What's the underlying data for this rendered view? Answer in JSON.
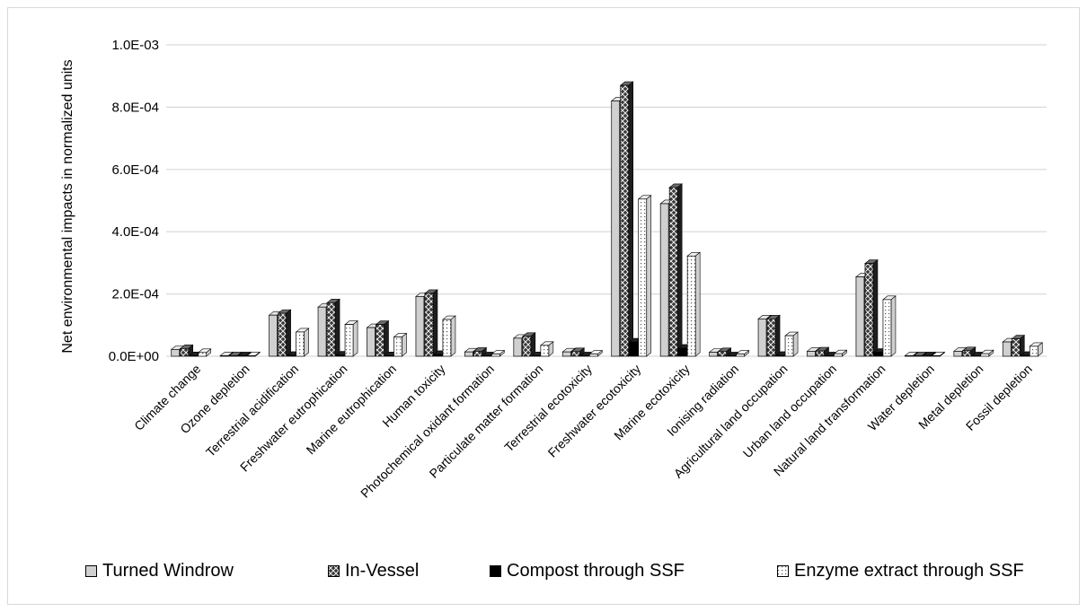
{
  "chart_data": {
    "type": "bar",
    "title": "",
    "ylabel": "Net environmental impacts in normalized units",
    "xlabel": "",
    "ylim": [
      0,
      0.001
    ],
    "yticks": [
      "0.0E+00",
      "2.0E-04",
      "4.0E-04",
      "6.0E-04",
      "8.0E-04",
      "1.0E-03"
    ],
    "ytick_values": [
      0,
      0.0002,
      0.0004,
      0.0006,
      0.0008,
      0.001
    ],
    "grid": "horizontal",
    "legend_position": "bottom",
    "categories": [
      "Climate change",
      "Ozone depletion",
      "Terrestrial acidification",
      "Freshwater eutrophication",
      "Marine eutrophication",
      "Human toxicity",
      "Photochemical oxidant formation",
      "Particulate matter formation",
      "Terrestrial ecotoxicity",
      "Freshwater ecotoxicity",
      "Marine ecotoxicity",
      "Ionising radiation",
      "Agricultural land occupation",
      "Urban land occupation",
      "Natural land transformation",
      "Water depletion",
      "Metal depletion",
      "Fossil depletion"
    ],
    "series": [
      {
        "name": "Turned Windrow",
        "pattern": "light-gray",
        "values": [
          2.2e-05,
          1e-06,
          0.000132,
          0.000158,
          9.2e-05,
          0.000192,
          1.4e-05,
          5.8e-05,
          1.4e-05,
          0.00082,
          0.00049,
          1.3e-05,
          0.00012,
          1.6e-05,
          0.000255,
          1e-06,
          1.6e-05,
          4.6e-05
        ]
      },
      {
        "name": "In-Vessel",
        "pattern": "crosshatch",
        "values": [
          2.5e-05,
          1e-06,
          0.000138,
          0.000172,
          0.000102,
          0.000202,
          1.6e-05,
          6.4e-05,
          1.5e-05,
          0.00087,
          0.000542,
          1.5e-05,
          0.00012,
          1.7e-05,
          0.000298,
          1e-06,
          1.8e-05,
          5.6e-05
        ]
      },
      {
        "name": "Compost through SSF",
        "pattern": "black",
        "values": [
          2e-06,
          0.0,
          3e-06,
          4e-06,
          2e-06,
          6e-06,
          1e-06,
          2e-06,
          1e-06,
          4.6e-05,
          2.6e-05,
          1e-06,
          3e-06,
          1e-06,
          1.3e-05,
          0.0,
          1e-06,
          3e-06
        ]
      },
      {
        "name": "Enzyme extract  through SSF",
        "pattern": "dotted",
        "values": [
          1.2e-05,
          0.0,
          7.8e-05,
          0.000102,
          6.2e-05,
          0.000118,
          7e-06,
          3.5e-05,
          7e-06,
          0.000505,
          0.000322,
          7e-06,
          6.6e-05,
          8e-06,
          0.000182,
          0.0,
          8e-06,
          3.2e-05
        ]
      }
    ]
  },
  "colors": {
    "grid": "#d9d9d9",
    "turned_windrow": "#d0d0d0",
    "in_vessel": "#404040",
    "compost": "#000000",
    "enzyme": "#ffffff"
  }
}
